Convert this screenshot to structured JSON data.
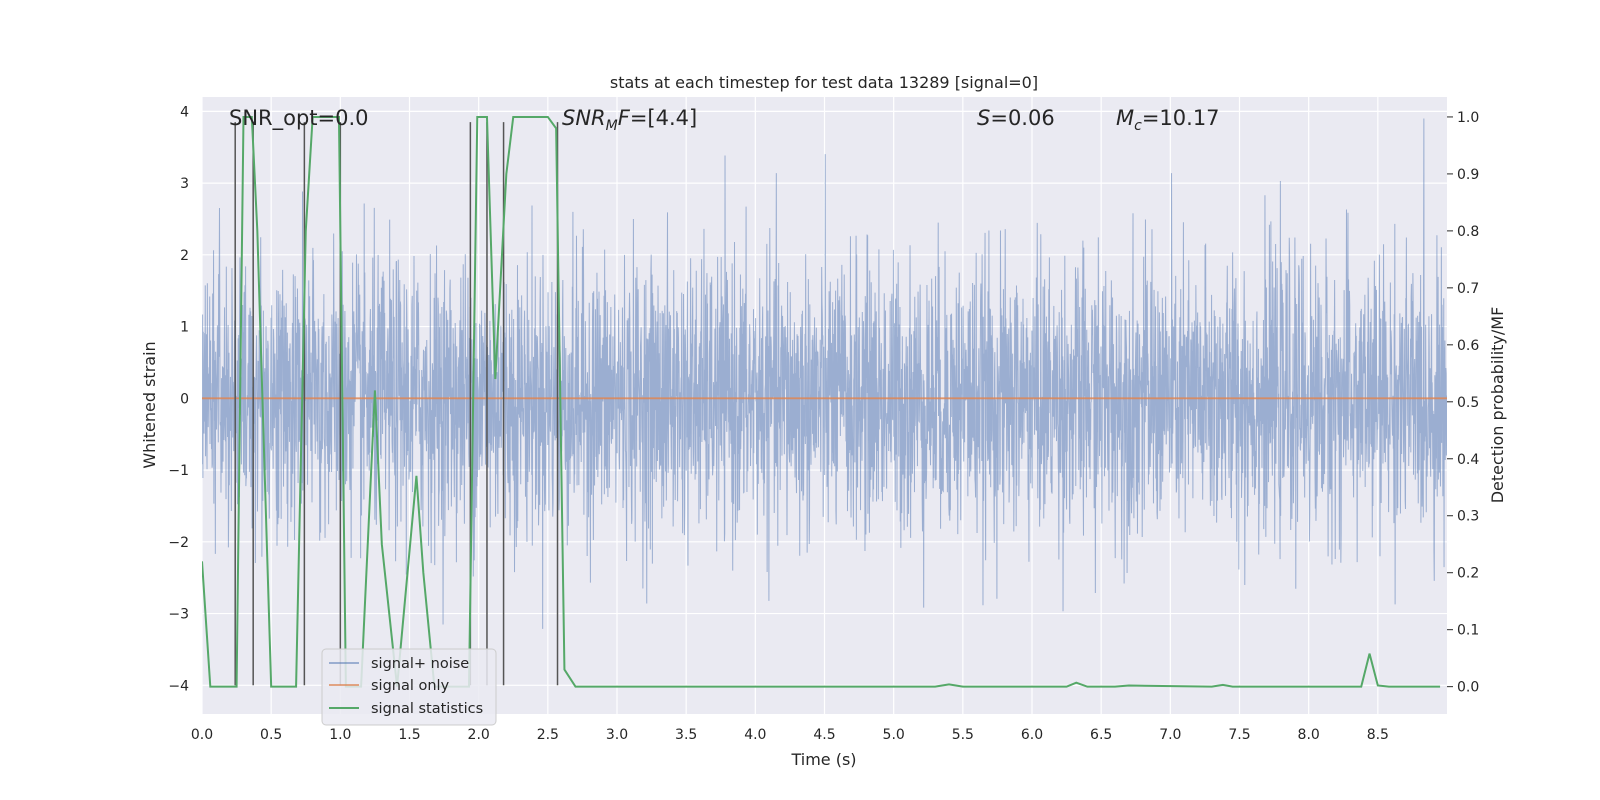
{
  "chart_data": {
    "type": "line",
    "title": "stats at each timestep for test data 13289 [signal=0]",
    "xlabel": "Time (s)",
    "ylabel_left": "Whitened strain",
    "ylabel_right": "Detection probability/MF",
    "xlim": [
      0.0,
      9.0
    ],
    "ylim_left": [
      -4.4,
      4.2
    ],
    "ylim_right": [
      -0.048,
      1.035
    ],
    "xticks": [
      0.0,
      0.5,
      1.0,
      1.5,
      2.0,
      2.5,
      3.0,
      3.5,
      4.0,
      4.5,
      5.0,
      5.5,
      6.0,
      6.5,
      7.0,
      7.5,
      8.0,
      8.5
    ],
    "xtick_labels": [
      "0.0",
      "0.5",
      "1.0",
      "1.5",
      "2.0",
      "2.5",
      "3.0",
      "3.5",
      "4.0",
      "4.5",
      "5.0",
      "5.5",
      "6.0",
      "6.5",
      "7.0",
      "7.5",
      "8.0",
      "8.5"
    ],
    "yticks_left": [
      4,
      3,
      2,
      1,
      0,
      -1,
      -2,
      -3,
      -4
    ],
    "ytick_labels_left": [
      "4",
      "3",
      "2",
      "1",
      "0",
      "−1",
      "−2",
      "−3",
      "−4"
    ],
    "yticks_right": [
      1.0,
      0.9,
      0.8,
      0.7,
      0.6,
      0.5,
      0.4,
      0.3,
      0.2,
      0.1,
      0.0
    ],
    "ytick_labels_right": [
      "1.0",
      "0.9",
      "0.8",
      "0.7",
      "0.6",
      "0.5",
      "0.4",
      "0.3",
      "0.2",
      "0.1",
      "0.0"
    ],
    "grid": true,
    "legend_position": "lower-left",
    "annotations": [
      {
        "text": "SNR_opt=0.0",
        "x": 0.2,
        "y": 3.9
      },
      {
        "text": "SNR_MF=[4.4]",
        "x": 2.6,
        "y": 3.9
      },
      {
        "text": "S=0.06",
        "x": 5.6,
        "y": 3.9
      },
      {
        "text": "M_c=10.17",
        "x": 6.6,
        "y": 3.9
      }
    ],
    "series": [
      {
        "name": "signal+ noise",
        "axis": "left",
        "color": "#4c72b0",
        "opacity": 0.5,
        "style": "noise",
        "noise_std": 0.95,
        "noise_range_observed": [
          -3.9,
          3.9
        ]
      },
      {
        "name": "signal only",
        "axis": "left",
        "color": "#dd8452",
        "x": [
          0.0,
          9.0
        ],
        "y": [
          0.0,
          0.0
        ]
      },
      {
        "name": "signal statistics",
        "axis": "right",
        "color": "#55a868",
        "x": [
          0.0,
          0.06,
          0.25,
          0.3,
          0.36,
          0.4,
          0.5,
          0.68,
          0.75,
          0.8,
          0.99,
          1.04,
          1.15,
          1.25,
          1.3,
          1.41,
          1.55,
          1.6,
          1.68,
          1.93,
          1.99,
          2.06,
          2.12,
          2.2,
          2.25,
          2.5,
          2.56,
          2.62,
          2.7,
          5.3,
          5.4,
          5.5,
          6.25,
          6.32,
          6.4,
          6.6,
          6.7,
          7.3,
          7.38,
          7.45,
          8.38,
          8.44,
          8.5,
          8.58,
          8.95
        ],
        "y": [
          0.22,
          0.0,
          0.0,
          1.0,
          1.0,
          0.8,
          0.0,
          0.0,
          0.8,
          1.0,
          1.0,
          0.0,
          0.0,
          0.52,
          0.25,
          0.0,
          0.37,
          0.2,
          0.0,
          0.0,
          1.0,
          1.0,
          0.54,
          0.9,
          1.0,
          1.0,
          0.98,
          0.03,
          0.0,
          0.0,
          0.004,
          0.0,
          0.0,
          0.007,
          0.0,
          0.0,
          0.002,
          0.0,
          0.003,
          0.0,
          0.0,
          0.058,
          0.002,
          0.0,
          0.0
        ]
      }
    ],
    "vertical_markers": {
      "color": "#555555",
      "x": [
        0.24,
        0.37,
        0.74,
        1.0,
        1.94,
        2.06,
        2.18,
        2.57
      ],
      "ymin": -4.0,
      "ymax": 3.85
    }
  }
}
